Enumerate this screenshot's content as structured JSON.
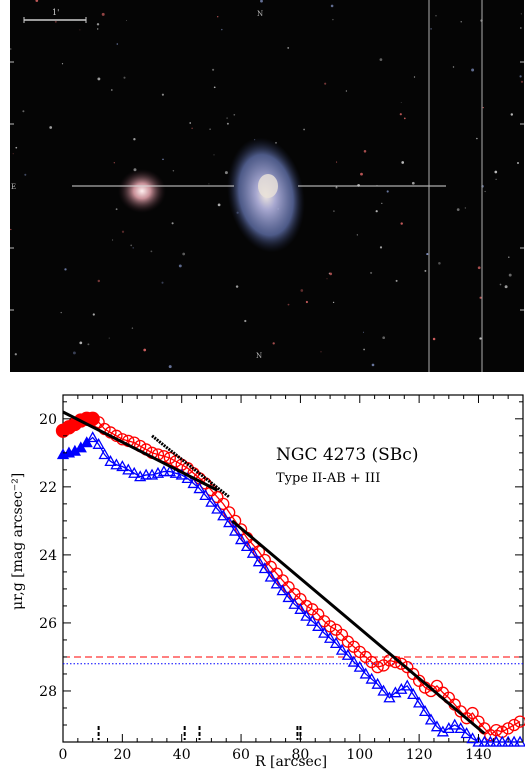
{
  "image_panel": {
    "scale_bar_label": "1'",
    "colors": {
      "background": "#050505",
      "galaxy_core": "#d8d0c8",
      "galaxy_disk": "#7f8fc8",
      "companion": "#c8a0a8"
    },
    "markers": {
      "top_center": "N",
      "left": "E",
      "bottom_center": "N"
    }
  },
  "chart_data": {
    "type": "line",
    "title": "NGC 4273 (SBc)",
    "subtitle": "Type II-AB + III",
    "xlabel": "R [arcsec]",
    "ylabel": "μr,g [mag arcsec⁻²]",
    "xlim": [
      0,
      155
    ],
    "ylim": [
      29.5,
      19.3
    ],
    "x_ticks": [
      0,
      20,
      40,
      60,
      80,
      100,
      120,
      140
    ],
    "y_ticks": [
      20,
      22,
      24,
      26,
      28
    ],
    "series": [
      {
        "color": "#ff0000",
        "marker": "circle",
        "x": [
          0,
          2,
          4,
          6,
          8,
          10,
          12,
          14,
          16,
          18,
          20,
          22,
          24,
          26,
          28,
          30,
          32,
          34,
          36,
          38,
          40,
          42,
          44,
          46,
          48,
          50,
          52,
          54,
          56,
          58,
          60,
          62,
          64,
          66,
          68,
          70,
          72,
          74,
          76,
          78,
          80,
          82,
          84,
          86,
          88,
          90,
          92,
          94,
          96,
          98,
          100,
          102,
          104,
          106,
          108,
          110,
          112,
          114,
          116,
          118,
          120,
          122,
          124,
          126,
          128,
          130,
          132,
          134,
          136,
          138,
          140,
          142,
          144,
          146,
          148,
          150,
          152,
          154
        ],
        "y": [
          20.35,
          20.25,
          20.15,
          20.05,
          20.0,
          20.0,
          20.1,
          20.3,
          20.4,
          20.5,
          20.6,
          20.65,
          20.7,
          20.8,
          20.9,
          21.0,
          21.05,
          21.1,
          21.15,
          21.25,
          21.35,
          21.45,
          21.6,
          21.75,
          21.9,
          22.1,
          22.3,
          22.5,
          22.75,
          23.0,
          23.25,
          23.5,
          23.7,
          23.9,
          24.15,
          24.35,
          24.55,
          24.75,
          24.95,
          25.15,
          25.3,
          25.5,
          25.6,
          25.75,
          25.95,
          26.1,
          26.2,
          26.35,
          26.55,
          26.7,
          26.85,
          27.0,
          27.15,
          27.3,
          27.25,
          27.1,
          27.15,
          27.2,
          27.3,
          27.5,
          27.7,
          27.9,
          28.0,
          27.85,
          28.05,
          28.2,
          28.4,
          28.6,
          28.8,
          28.65,
          28.9,
          29.1,
          29.3,
          29.15,
          29.2,
          29.1,
          29.0,
          28.9
        ]
      },
      {
        "color": "#0000ff",
        "marker": "triangle",
        "x": [
          0,
          2,
          4,
          6,
          8,
          10,
          12,
          14,
          16,
          18,
          20,
          22,
          24,
          26,
          28,
          30,
          32,
          34,
          36,
          38,
          40,
          42,
          44,
          46,
          48,
          50,
          52,
          54,
          56,
          58,
          60,
          62,
          64,
          66,
          68,
          70,
          72,
          74,
          76,
          78,
          80,
          82,
          84,
          86,
          88,
          90,
          92,
          94,
          96,
          98,
          100,
          102,
          104,
          106,
          108,
          110,
          112,
          114,
          116,
          118,
          120,
          122,
          124,
          126,
          128,
          130,
          132,
          134,
          136,
          138,
          140,
          142,
          144,
          146,
          148,
          150,
          152,
          154
        ],
        "y": [
          21.05,
          21.0,
          20.95,
          20.85,
          20.7,
          20.55,
          20.75,
          21.05,
          21.25,
          21.35,
          21.4,
          21.5,
          21.6,
          21.7,
          21.65,
          21.65,
          21.6,
          21.55,
          21.55,
          21.6,
          21.65,
          21.75,
          21.9,
          22.05,
          22.25,
          22.45,
          22.65,
          22.85,
          23.05,
          23.3,
          23.55,
          23.75,
          23.95,
          24.2,
          24.4,
          24.65,
          24.85,
          25.05,
          25.25,
          25.45,
          25.6,
          25.8,
          25.95,
          26.1,
          26.3,
          26.45,
          26.6,
          26.8,
          26.95,
          27.15,
          27.3,
          27.5,
          27.65,
          27.8,
          28.0,
          28.2,
          28.05,
          27.95,
          27.85,
          28.1,
          28.35,
          28.6,
          28.85,
          29.05,
          29.2,
          29.1,
          29.0,
          29.1,
          29.25,
          29.4,
          29.5,
          29.5,
          29.5,
          29.5,
          29.5,
          29.5,
          29.5,
          29.5
        ]
      }
    ],
    "fit_lines": [
      {
        "x": [
          0,
          52
        ],
        "y": [
          19.8,
          22.1
        ]
      },
      {
        "x": [
          30,
          56
        ],
        "y": [
          20.5,
          22.3
        ]
      },
      {
        "x": [
          57,
          142
        ],
        "y": [
          23.0,
          29.25
        ]
      }
    ],
    "reference_lines": [
      {
        "y": 27.0,
        "color": "#ff0000",
        "style": "dashed"
      },
      {
        "y": 27.2,
        "color": "#0000ff",
        "style": "dotted"
      }
    ],
    "break_marks": [
      12,
      41,
      46,
      79,
      80
    ]
  }
}
